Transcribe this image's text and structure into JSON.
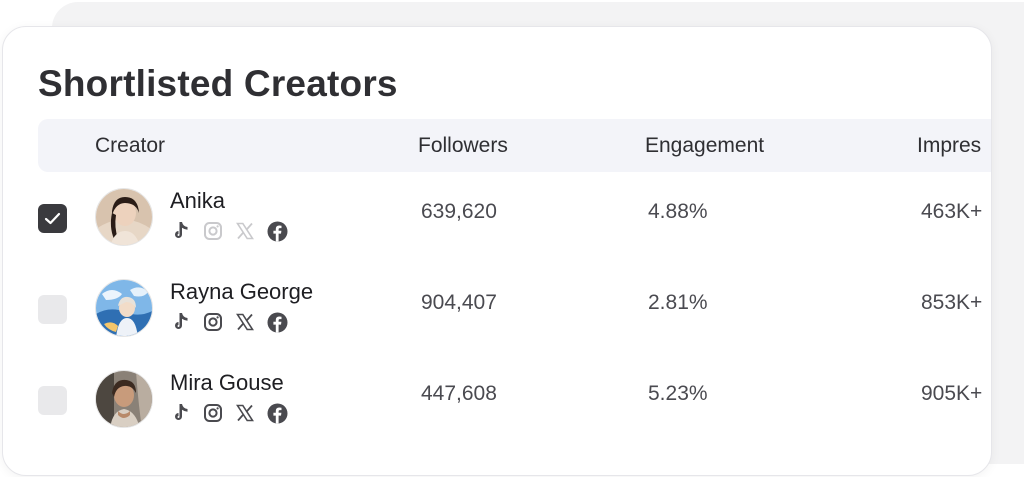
{
  "title": "Shortlisted Creators",
  "columns": {
    "creator": "Creator",
    "followers": "Followers",
    "engagement": "Engagement",
    "impressions": "Impres"
  },
  "rows": [
    {
      "name": "Anika",
      "checked": true,
      "followers": "639,620",
      "engagement": "4.88%",
      "impressions": "463K+",
      "socials_active": {
        "tiktok": true,
        "instagram": false,
        "x": false,
        "facebook": true
      }
    },
    {
      "name": "Rayna George",
      "checked": false,
      "followers": "904,407",
      "engagement": "2.81%",
      "impressions": "853K+",
      "socials_active": {
        "tiktok": true,
        "instagram": true,
        "x": true,
        "facebook": true
      }
    },
    {
      "name": "Mira Gouse",
      "checked": false,
      "followers": "447,608",
      "engagement": "5.23%",
      "impressions": "905K+",
      "socials_active": {
        "tiktok": true,
        "instagram": true,
        "x": true,
        "facebook": true
      }
    }
  ],
  "colors": {
    "text_primary": "#2f2f33",
    "header_bg": "#f3f4f9",
    "checkbox_checked": "#3a3a3e",
    "checkbox_unchecked": "#e9e9eb",
    "icon_active": "#4a4a4f",
    "icon_inactive": "#c9c9cc"
  }
}
